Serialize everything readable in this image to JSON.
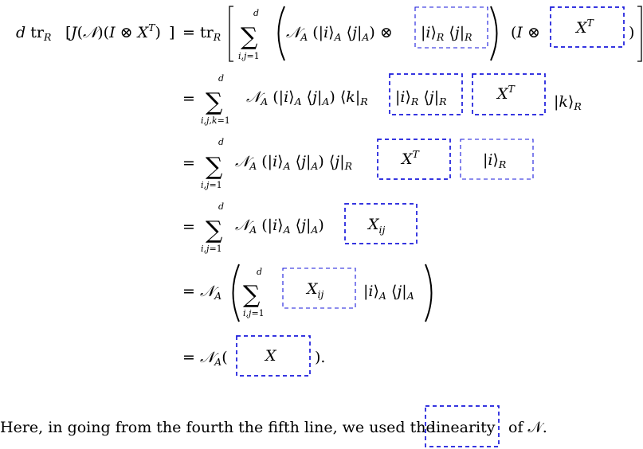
{
  "derivation": {
    "line1": {
      "lhs": "d tr_R [J(𝒩)(I ⊗ X^T)]",
      "rhs": "tr_R [ Σ_{i,j=1}^{d} ( 𝒩_A (|i⟩_A ⟨j|_A) ⊗ |i⟩_R ⟨j|_R ) (I ⊗ X^T) ]",
      "boxes": [
        "|i⟩_R ⟨j|_R",
        "X^T"
      ]
    },
    "line2": {
      "rhs": "= Σ_{i,j,k=1}^{d} 𝒩_A (|i⟩_A ⟨j|_A) ⟨k|_R |i⟩_R ⟨j|_R X^T |k⟩_R",
      "boxes": [
        "|i⟩_R ⟨j|_R",
        "X^T"
      ]
    },
    "line3": {
      "rhs": "= Σ_{i,j=1}^{d} 𝒩_A (|i⟩_A ⟨j|_A) ⟨j|_R X^T |i⟩_R",
      "boxes": [
        "X^T",
        "|i⟩_R"
      ]
    },
    "line4": {
      "rhs": "= Σ_{i,j=1}^{d} 𝒩_A (|i⟩_A ⟨j|_A) X_ij",
      "boxes": [
        "X_ij"
      ]
    },
    "line5": {
      "rhs": "= 𝒩_A ( Σ_{i,j=1}^{d} X_ij |i⟩_A ⟨j|_A )",
      "boxes": [
        "X_ij"
      ]
    },
    "line6": {
      "rhs": "= 𝒩_A(X).",
      "boxes": [
        "X"
      ]
    }
  },
  "caption": {
    "before": "Here, in going from the fourth the fifth line, we used the",
    "highlight": "linearity",
    "after": "of 𝒩."
  },
  "colors": {
    "box_stroke": "#1a1adb",
    "text": "#000000",
    "background": "#ffffff"
  }
}
